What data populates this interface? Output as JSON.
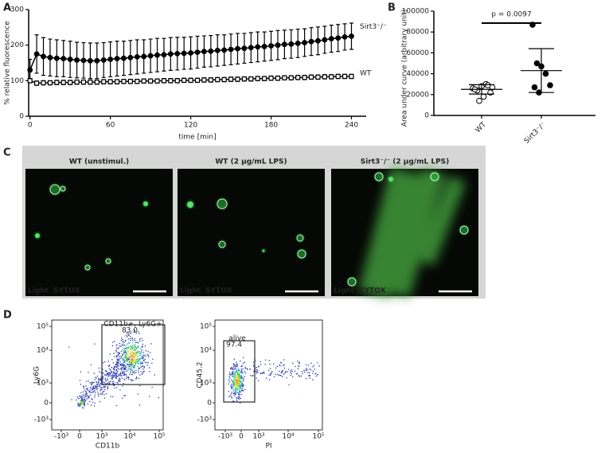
{
  "panel_labels": [
    "A",
    "B",
    "C",
    "D"
  ],
  "chart_data": [
    {
      "type": "line",
      "x_label": "time [min]",
      "y_label": "% relative fluorescence",
      "x": [
        0,
        5,
        10,
        15,
        20,
        25,
        30,
        35,
        40,
        45,
        50,
        55,
        60,
        65,
        70,
        75,
        80,
        85,
        90,
        95,
        100,
        105,
        110,
        115,
        120,
        125,
        130,
        135,
        140,
        145,
        150,
        155,
        160,
        165,
        170,
        175,
        180,
        185,
        190,
        195,
        200,
        205,
        210,
        215,
        220,
        225,
        230,
        235,
        240
      ],
      "series": [
        {
          "name": "Sirt3⁻/⁻",
          "color": "#000000",
          "marker": "circle",
          "values": [
            130,
            175,
            168,
            165,
            163,
            162,
            160,
            158,
            157,
            156,
            156,
            158,
            160,
            162,
            163,
            165,
            167,
            168,
            170,
            172,
            173,
            175,
            176,
            177,
            178,
            180,
            182,
            183,
            185,
            186,
            188,
            190,
            191,
            193,
            195,
            196,
            198,
            200,
            202,
            203,
            205,
            207,
            210,
            212,
            215,
            218,
            220,
            223,
            225
          ],
          "errors": [
            30,
            54,
            53,
            52,
            52,
            51,
            51,
            50,
            50,
            50,
            50,
            49,
            49,
            49,
            48,
            48,
            48,
            47,
            47,
            47,
            46,
            46,
            46,
            45,
            45,
            45,
            44,
            44,
            44,
            43,
            43,
            43,
            42,
            42,
            42,
            41,
            41,
            41,
            40,
            40,
            40,
            39,
            39,
            39,
            38,
            38,
            38,
            37,
            37
          ]
        },
        {
          "name": "WT",
          "color": "#000000",
          "marker": "square",
          "values": [
            100,
            93,
            94,
            94,
            95,
            95,
            95,
            96,
            96,
            96,
            96,
            97,
            97,
            97,
            98,
            98,
            98,
            99,
            99,
            99,
            100,
            100,
            100,
            101,
            101,
            101,
            102,
            102,
            103,
            103,
            104,
            104,
            105,
            105,
            106,
            106,
            107,
            107,
            108,
            108,
            109,
            109,
            110,
            110,
            111,
            111,
            112,
            112,
            112
          ],
          "errors": [
            6,
            6,
            6,
            6,
            6,
            6,
            6,
            6,
            6,
            6,
            6,
            6,
            6,
            6,
            6,
            6,
            6,
            6,
            6,
            6,
            6,
            6,
            6,
            6,
            6,
            6,
            6,
            6,
            6,
            6,
            6,
            6,
            6,
            6,
            6,
            6,
            6,
            6,
            6,
            6,
            6,
            6,
            6,
            6,
            6,
            6,
            6,
            6,
            6
          ]
        }
      ],
      "xlim": [
        -1,
        251
      ],
      "xticks": [
        0,
        60,
        120,
        180,
        240
      ],
      "ylim": [
        0,
        300
      ],
      "yticks": [
        0,
        100,
        200,
        300
      ]
    },
    {
      "type": "scatter",
      "y_label": "Area under curve (arbitrary unit)",
      "categories": [
        "WT",
        "Sirt3⁻/⁻"
      ],
      "groups": [
        {
          "fill": "#ffffff",
          "values": [
            26000,
            24000,
            28000,
            30000,
            22000,
            25000,
            14000,
            18000,
            29000,
            27000
          ]
        },
        {
          "fill": "#000000",
          "values": [
            87000,
            50000,
            47000,
            40000,
            29000,
            27000,
            22000
          ]
        }
      ],
      "mean": [
        25000,
        43000
      ],
      "sd": [
        4500,
        21000
      ],
      "ylim": [
        0,
        100000
      ],
      "yticks": [
        0,
        20000,
        40000,
        60000,
        80000,
        100000
      ],
      "annotation": "p = 0.0097"
    }
  ],
  "microscopy": {
    "panels": [
      {
        "title": "WT (unstimul.)"
      },
      {
        "title": "WT (2 µg/mL LPS)"
      },
      {
        "title": "Sirt3⁻/⁻ (2 µg/mL LPS)"
      }
    ],
    "channels": [
      "Light",
      "SYTOX"
    ]
  },
  "flow": [
    {
      "x_label": "CD11b",
      "y_label": "Ly6G",
      "x_tick_labels": [
        "-10³",
        "0",
        "10³",
        "10⁴",
        "10⁵"
      ],
      "y_tick_labels": [
        "-10³",
        "0",
        "10³",
        "10⁴",
        "10⁵"
      ],
      "gate": {
        "name": "CD11b+, Ly6G+",
        "percent": "83.0"
      }
    },
    {
      "x_label": "PI",
      "y_label": "CD45.2",
      "x_tick_labels": [
        "-10³",
        "0",
        "10³",
        "10⁴",
        "10⁵"
      ],
      "y_tick_labels": [
        "-10³",
        "0",
        "10³",
        "10⁴",
        "10⁵"
      ],
      "gate": {
        "name": "alive",
        "percent": "97.4"
      }
    }
  ]
}
